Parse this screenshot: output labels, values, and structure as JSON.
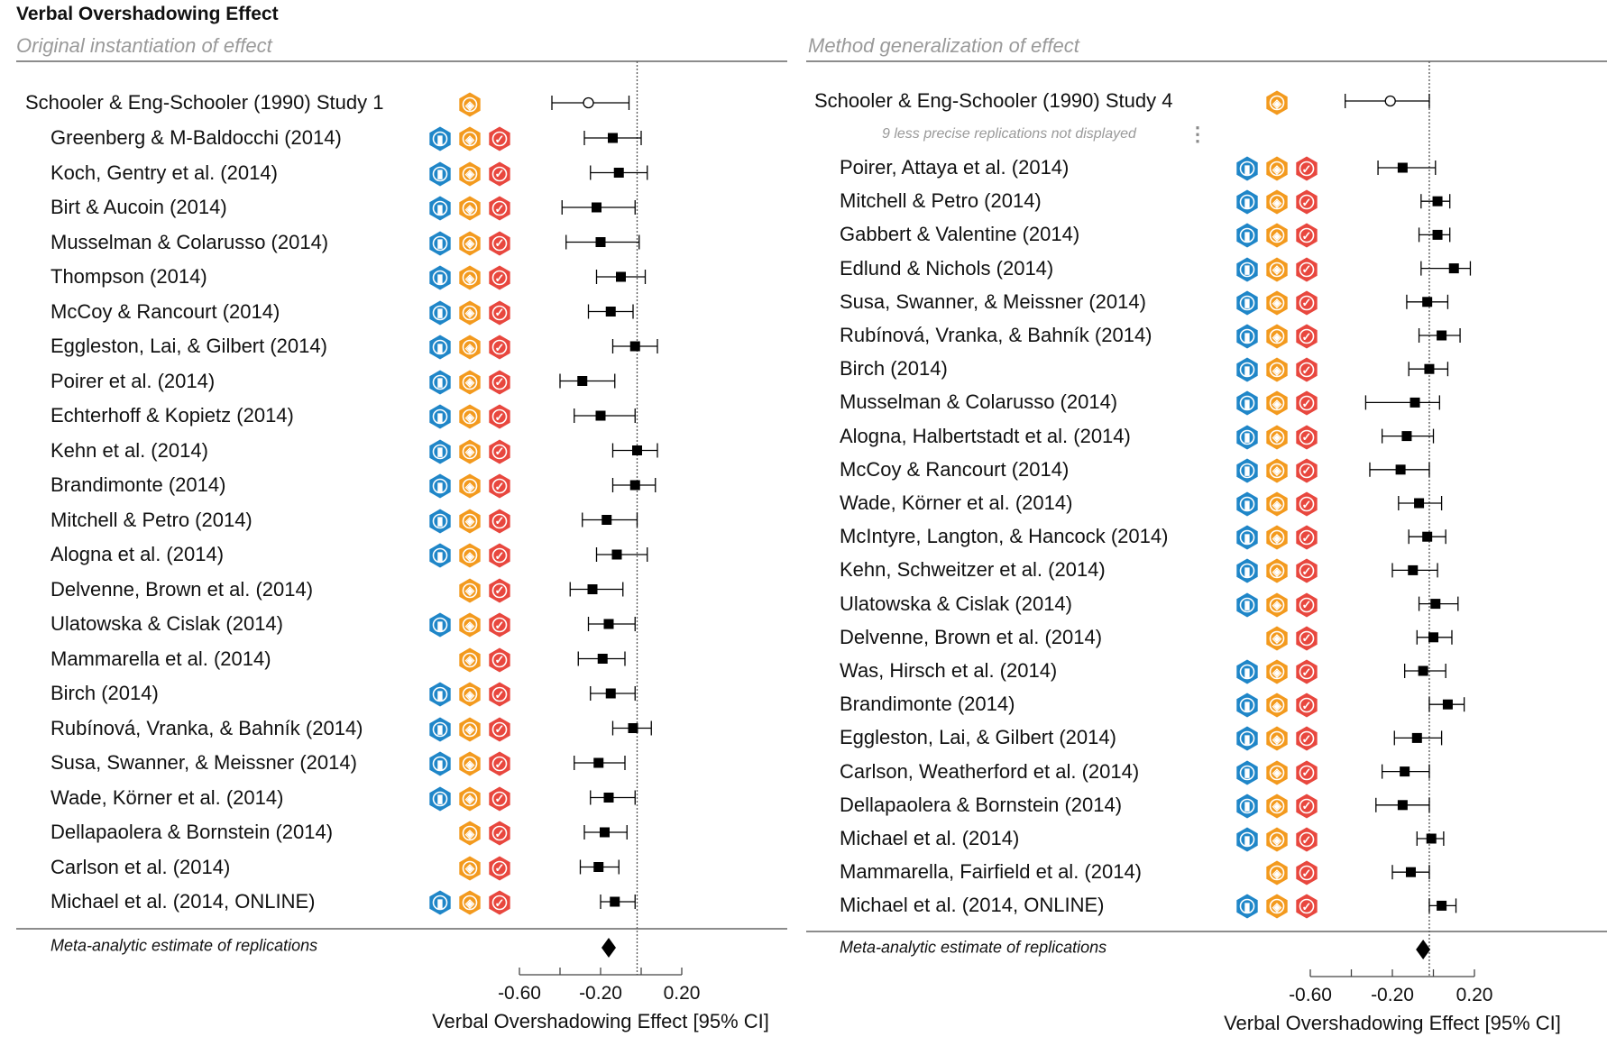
{
  "title": "Verbal Overshadowing Effect",
  "colors": {
    "badge_stats": "#1f86c8",
    "badge_hat": "#f39a1e",
    "badge_check": "#e8473e",
    "marker": "#000000",
    "reference_line": "#555555",
    "subtitle": "#9a9a9a"
  },
  "badge_icons": {
    "stats": "bar-chart-hexagon-icon",
    "hat": "graduation-cap-hexagon-icon",
    "check": "checkmark-hexagon-icon"
  },
  "chart_data": [
    {
      "type": "forest",
      "subtitle": "Original instantiation of effect",
      "xlabel": "Verbal Overshadowing Effect [95% CI]",
      "xlim": [
        -0.6,
        0.2
      ],
      "ticks": [
        -0.6,
        -0.4,
        -0.2,
        0.0,
        0.2
      ],
      "tick_labels": [
        "-0.60",
        "",
        "-0.20",
        "",
        "0.20"
      ],
      "reference_line": -0.02,
      "original": {
        "label": "Schooler & Eng-Schooler (1990) Study 1",
        "est": -0.26,
        "lo": -0.44,
        "hi": -0.06,
        "badges": [
          "hat"
        ]
      },
      "replications": [
        {
          "label": "Greenberg & M-Baldocchi (2014)",
          "est": -0.14,
          "lo": -0.28,
          "hi": 0.0,
          "badges": [
            "stats",
            "hat",
            "check"
          ]
        },
        {
          "label": "Koch, Gentry et al. (2014)",
          "est": -0.11,
          "lo": -0.25,
          "hi": 0.03,
          "badges": [
            "stats",
            "hat",
            "check"
          ]
        },
        {
          "label": "Birt & Aucoin (2014)",
          "est": -0.22,
          "lo": -0.39,
          "hi": -0.03,
          "badges": [
            "stats",
            "hat",
            "check"
          ]
        },
        {
          "label": "Musselman & Colarusso (2014)",
          "est": -0.2,
          "lo": -0.37,
          "hi": -0.01,
          "badges": [
            "stats",
            "hat",
            "check"
          ]
        },
        {
          "label": "Thompson (2014)",
          "est": -0.1,
          "lo": -0.22,
          "hi": 0.02,
          "badges": [
            "stats",
            "hat",
            "check"
          ]
        },
        {
          "label": "McCoy & Rancourt (2014)",
          "est": -0.15,
          "lo": -0.26,
          "hi": -0.04,
          "badges": [
            "stats",
            "hat",
            "check"
          ]
        },
        {
          "label": "Eggleston, Lai, & Gilbert (2014)",
          "est": -0.03,
          "lo": -0.14,
          "hi": 0.08,
          "badges": [
            "stats",
            "hat",
            "check"
          ]
        },
        {
          "label": "Poirer et al. (2014)",
          "est": -0.29,
          "lo": -0.4,
          "hi": -0.13,
          "badges": [
            "stats",
            "hat",
            "check"
          ]
        },
        {
          "label": "Echterhoff & Kopietz (2014)",
          "est": -0.2,
          "lo": -0.33,
          "hi": -0.03,
          "badges": [
            "stats",
            "hat",
            "check"
          ]
        },
        {
          "label": "Kehn et al. (2014)",
          "est": -0.02,
          "lo": -0.14,
          "hi": 0.08,
          "badges": [
            "stats",
            "hat",
            "check"
          ]
        },
        {
          "label": "Brandimonte (2014)",
          "est": -0.03,
          "lo": -0.14,
          "hi": 0.07,
          "badges": [
            "stats",
            "hat",
            "check"
          ]
        },
        {
          "label": "Mitchell & Petro (2014)",
          "est": -0.17,
          "lo": -0.29,
          "hi": -0.02,
          "badges": [
            "stats",
            "hat",
            "check"
          ]
        },
        {
          "label": "Alogna et al. (2014)",
          "est": -0.12,
          "lo": -0.22,
          "hi": 0.03,
          "badges": [
            "stats",
            "hat",
            "check"
          ]
        },
        {
          "label": "Delvenne, Brown et al. (2014)",
          "est": -0.24,
          "lo": -0.35,
          "hi": -0.09,
          "badges": [
            "hat",
            "check"
          ]
        },
        {
          "label": "Ulatowska & Cislak (2014)",
          "est": -0.16,
          "lo": -0.26,
          "hi": -0.03,
          "badges": [
            "stats",
            "hat",
            "check"
          ]
        },
        {
          "label": "Mammarella et al. (2014)",
          "est": -0.19,
          "lo": -0.31,
          "hi": -0.08,
          "badges": [
            "hat",
            "check"
          ]
        },
        {
          "label": "Birch (2014)",
          "est": -0.15,
          "lo": -0.25,
          "hi": -0.03,
          "badges": [
            "stats",
            "hat",
            "check"
          ]
        },
        {
          "label": "Rubínová, Vranka, & Bahník (2014)",
          "est": -0.04,
          "lo": -0.14,
          "hi": 0.05,
          "badges": [
            "stats",
            "hat",
            "check"
          ]
        },
        {
          "label": "Susa, Swanner, & Meissner (2014)",
          "est": -0.21,
          "lo": -0.33,
          "hi": -0.08,
          "badges": [
            "stats",
            "hat",
            "check"
          ]
        },
        {
          "label": "Wade, Körner et al. (2014)",
          "est": -0.16,
          "lo": -0.25,
          "hi": -0.03,
          "badges": [
            "stats",
            "hat",
            "check"
          ]
        },
        {
          "label": "Dellapaolera & Bornstein (2014)",
          "est": -0.18,
          "lo": -0.28,
          "hi": -0.07,
          "badges": [
            "hat",
            "check"
          ]
        },
        {
          "label": "Carlson et al. (2014)",
          "est": -0.21,
          "lo": -0.3,
          "hi": -0.11,
          "badges": [
            "hat",
            "check"
          ]
        },
        {
          "label": "Michael et al. (2014, ONLINE)",
          "est": -0.13,
          "lo": -0.2,
          "hi": -0.03,
          "badges": [
            "stats",
            "hat",
            "check"
          ]
        }
      ],
      "meta": {
        "label": "Meta-analytic estimate of replications",
        "est": -0.16
      }
    },
    {
      "type": "forest",
      "subtitle": "Method generalization of effect",
      "xlabel": "Verbal Overshadowing Effect [95% CI]",
      "xlim": [
        -0.6,
        0.2
      ],
      "ticks": [
        -0.6,
        -0.4,
        -0.2,
        0.0,
        0.2
      ],
      "tick_labels": [
        "-0.60",
        "",
        "-0.20",
        "",
        "0.20"
      ],
      "reference_line": -0.02,
      "original": {
        "label": "Schooler & Eng-Schooler (1990) Study 4",
        "est": -0.21,
        "lo": -0.43,
        "hi": -0.02,
        "badges": [
          "hat"
        ]
      },
      "note": "9 less precise replications not displayed",
      "replications": [
        {
          "label": "Poirer, Attaya et al. (2014)",
          "est": -0.15,
          "lo": -0.27,
          "hi": 0.01,
          "badges": [
            "stats",
            "hat",
            "check"
          ]
        },
        {
          "label": "Mitchell & Petro (2014)",
          "est": 0.02,
          "lo": -0.06,
          "hi": 0.08,
          "badges": [
            "stats",
            "hat",
            "check"
          ]
        },
        {
          "label": "Gabbert & Valentine (2014)",
          "est": 0.02,
          "lo": -0.07,
          "hi": 0.08,
          "badges": [
            "stats",
            "hat",
            "check"
          ]
        },
        {
          "label": "Edlund & Nichols (2014)",
          "est": 0.1,
          "lo": -0.06,
          "hi": 0.18,
          "badges": [
            "stats",
            "hat",
            "check"
          ]
        },
        {
          "label": "Susa, Swanner, & Meissner (2014)",
          "est": -0.03,
          "lo": -0.13,
          "hi": 0.07,
          "badges": [
            "stats",
            "hat",
            "check"
          ]
        },
        {
          "label": "Rubínová, Vranka, & Bahník (2014)",
          "est": 0.04,
          "lo": -0.07,
          "hi": 0.13,
          "badges": [
            "stats",
            "hat",
            "check"
          ]
        },
        {
          "label": "Birch (2014)",
          "est": -0.02,
          "lo": -0.12,
          "hi": 0.07,
          "badges": [
            "stats",
            "hat",
            "check"
          ]
        },
        {
          "label": "Musselman & Colarusso (2014)",
          "est": -0.09,
          "lo": -0.33,
          "hi": 0.03,
          "badges": [
            "stats",
            "hat",
            "check"
          ]
        },
        {
          "label": "Alogna, Halbertstadt et al. (2014)",
          "est": -0.13,
          "lo": -0.25,
          "hi": 0.0,
          "badges": [
            "stats",
            "hat",
            "check"
          ]
        },
        {
          "label": "McCoy & Rancourt (2014)",
          "est": -0.16,
          "lo": -0.31,
          "hi": -0.02,
          "badges": [
            "stats",
            "hat",
            "check"
          ]
        },
        {
          "label": "Wade, Körner et al. (2014)",
          "est": -0.07,
          "lo": -0.17,
          "hi": 0.04,
          "badges": [
            "stats",
            "hat",
            "check"
          ]
        },
        {
          "label": "McIntyre, Langton, & Hancock (2014)",
          "est": -0.03,
          "lo": -0.12,
          "hi": 0.06,
          "badges": [
            "stats",
            "hat",
            "check"
          ]
        },
        {
          "label": "Kehn, Schweitzer et al. (2014)",
          "est": -0.1,
          "lo": -0.2,
          "hi": 0.02,
          "badges": [
            "stats",
            "hat",
            "check"
          ]
        },
        {
          "label": "Ulatowska & Cislak (2014)",
          "est": 0.01,
          "lo": -0.07,
          "hi": 0.12,
          "badges": [
            "stats",
            "hat",
            "check"
          ]
        },
        {
          "label": "Delvenne, Brown et al. (2014)",
          "est": 0.0,
          "lo": -0.08,
          "hi": 0.09,
          "badges": [
            "hat",
            "check"
          ]
        },
        {
          "label": "Was, Hirsch et al. (2014)",
          "est": -0.05,
          "lo": -0.14,
          "hi": 0.06,
          "badges": [
            "stats",
            "hat",
            "check"
          ]
        },
        {
          "label": "Brandimonte (2014)",
          "est": 0.07,
          "lo": -0.02,
          "hi": 0.15,
          "badges": [
            "stats",
            "hat",
            "check"
          ]
        },
        {
          "label": "Eggleston, Lai, & Gilbert (2014)",
          "est": -0.08,
          "lo": -0.19,
          "hi": 0.04,
          "badges": [
            "stats",
            "hat",
            "check"
          ]
        },
        {
          "label": "Carlson, Weatherford et al. (2014)",
          "est": -0.14,
          "lo": -0.25,
          "hi": -0.02,
          "badges": [
            "stats",
            "hat",
            "check"
          ]
        },
        {
          "label": "Dellapaolera & Bornstein (2014)",
          "est": -0.15,
          "lo": -0.28,
          "hi": -0.02,
          "badges": [
            "stats",
            "hat",
            "check"
          ]
        },
        {
          "label": "Michael et al. (2014)",
          "est": -0.01,
          "lo": -0.08,
          "hi": 0.05,
          "badges": [
            "stats",
            "hat",
            "check"
          ]
        },
        {
          "label": "Mammarella, Fairfield et al. (2014)",
          "est": -0.11,
          "lo": -0.2,
          "hi": -0.02,
          "badges": [
            "hat",
            "check"
          ]
        },
        {
          "label": "Michael et al. (2014, ONLINE)",
          "est": 0.04,
          "lo": -0.02,
          "hi": 0.11,
          "badges": [
            "stats",
            "hat",
            "check"
          ]
        }
      ],
      "meta": {
        "label": "Meta-analytic estimate of replications",
        "est": -0.05
      }
    }
  ]
}
